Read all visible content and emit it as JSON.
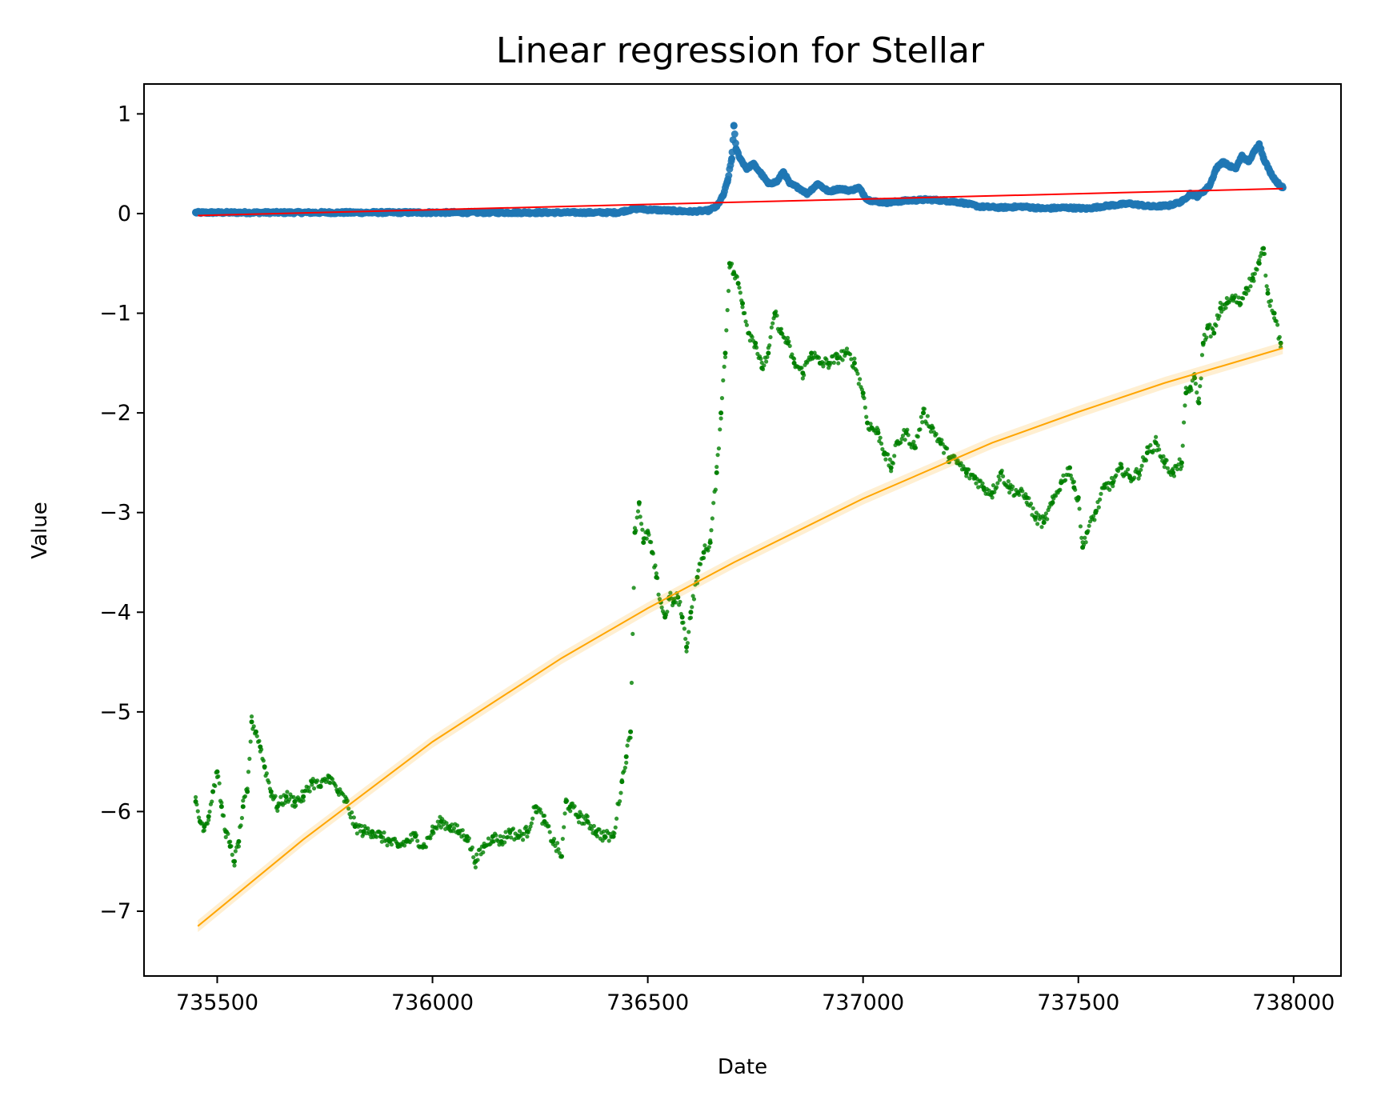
{
  "chart_data": {
    "type": "scatter",
    "title": "Linear regression for Stellar",
    "xlabel": "Date",
    "ylabel": "Value",
    "xlim": [
      735330,
      738110
    ],
    "ylim": [
      -7.65,
      1.3
    ],
    "x_ticks": [
      735500,
      736000,
      736500,
      737000,
      737500,
      738000
    ],
    "x_tick_labels": [
      "735500",
      "736000",
      "736500",
      "737000",
      "737500",
      "738000"
    ],
    "y_ticks": [
      1,
      0,
      -1,
      -2,
      -3,
      -4,
      -5,
      -6,
      -7
    ],
    "y_tick_labels": [
      "1",
      "0",
      "−1",
      "−2",
      "−3",
      "−4",
      "−5",
      "−6",
      "−7"
    ],
    "grid": false,
    "series": [
      {
        "kind": "scatter",
        "color": "#1f77b4",
        "x": [
          735450,
          735550,
          735650,
          735750,
          735850,
          735950,
          736050,
          736150,
          736250,
          736350,
          736430,
          736460,
          736480,
          736500,
          736550,
          736600,
          736640,
          736660,
          736675,
          736685,
          736695,
          736700,
          736705,
          736715,
          736730,
          736745,
          736760,
          736780,
          736800,
          736815,
          736830,
          736850,
          736870,
          736895,
          736920,
          736945,
          736970,
          736990,
          737010,
          737030,
          737060,
          737100,
          737150,
          737190,
          737230,
          737270,
          737320,
          737370,
          737420,
          737470,
          737520,
          737570,
          737620,
          737670,
          737710,
          737740,
          737760,
          737775,
          737790,
          737805,
          737820,
          737835,
          737850,
          737865,
          737880,
          737895,
          737910,
          737920,
          737930,
          737945,
          737960,
          737975
        ],
        "y": [
          0.01,
          0.01,
          0.01,
          0.01,
          0.01,
          0.01,
          0.01,
          0.01,
          0.01,
          0.01,
          0.01,
          0.04,
          0.05,
          0.04,
          0.03,
          0.02,
          0.03,
          0.07,
          0.18,
          0.32,
          0.55,
          0.88,
          0.65,
          0.55,
          0.45,
          0.5,
          0.42,
          0.3,
          0.32,
          0.42,
          0.3,
          0.26,
          0.2,
          0.3,
          0.22,
          0.25,
          0.23,
          0.26,
          0.14,
          0.12,
          0.11,
          0.13,
          0.14,
          0.13,
          0.11,
          0.07,
          0.06,
          0.07,
          0.05,
          0.06,
          0.05,
          0.08,
          0.1,
          0.07,
          0.08,
          0.12,
          0.2,
          0.17,
          0.22,
          0.28,
          0.45,
          0.52,
          0.48,
          0.45,
          0.58,
          0.52,
          0.63,
          0.7,
          0.56,
          0.42,
          0.32,
          0.26
        ]
      },
      {
        "kind": "scatter",
        "color": "#008000",
        "x": [
          735450,
          735460,
          735470,
          735480,
          735490,
          735500,
          735510,
          735520,
          735530,
          735540,
          735550,
          735560,
          735570,
          735580,
          735590,
          735600,
          735610,
          735625,
          735640,
          735660,
          735680,
          735700,
          735720,
          735740,
          735760,
          735780,
          735800,
          735820,
          735840,
          735860,
          735880,
          735900,
          735920,
          735940,
          735960,
          735980,
          736000,
          736020,
          736040,
          736060,
          736080,
          736100,
          736120,
          736140,
          736160,
          736180,
          736200,
          736220,
          736240,
          736260,
          736280,
          736300,
          736310,
          736320,
          736340,
          736360,
          736380,
          736400,
          736420,
          736440,
          736450,
          736460,
          736470,
          736480,
          736490,
          736500,
          736510,
          736520,
          736530,
          736540,
          736550,
          736560,
          736570,
          736580,
          736590,
          736600,
          736615,
          736630,
          736645,
          736660,
          736670,
          736680,
          736690,
          736700,
          736710,
          736720,
          736735,
          736750,
          736765,
          736780,
          736795,
          736810,
          736825,
          736840,
          736860,
          736880,
          736900,
          736920,
          736940,
          736960,
          736980,
          737000,
          737010,
          737020,
          737035,
          737050,
          737065,
          737080,
          737100,
          737120,
          737140,
          737160,
          737180,
          737200,
          737220,
          737240,
          737260,
          737280,
          737300,
          737320,
          737340,
          737360,
          737380,
          737400,
          737420,
          737440,
          737460,
          737480,
          737490,
          737500,
          737510,
          737520,
          737540,
          737560,
          737580,
          737600,
          737620,
          737640,
          737660,
          737680,
          737700,
          737720,
          737740,
          737750,
          737760,
          737770,
          737780,
          737790,
          737800,
          737815,
          737830,
          737845,
          737860,
          737875,
          737890,
          737905,
          737920,
          737930,
          737940,
          737955,
          737970
        ],
        "y": [
          -5.9,
          -6.1,
          -6.15,
          -6.05,
          -5.8,
          -5.6,
          -5.95,
          -6.2,
          -6.35,
          -6.5,
          -6.3,
          -5.95,
          -5.8,
          -5.1,
          -5.2,
          -5.35,
          -5.55,
          -5.8,
          -5.95,
          -5.85,
          -5.9,
          -5.85,
          -5.7,
          -5.75,
          -5.65,
          -5.8,
          -5.9,
          -6.15,
          -6.2,
          -6.2,
          -6.25,
          -6.3,
          -6.35,
          -6.3,
          -6.25,
          -6.35,
          -6.2,
          -6.1,
          -6.15,
          -6.2,
          -6.25,
          -6.5,
          -6.35,
          -6.25,
          -6.3,
          -6.2,
          -6.25,
          -6.2,
          -5.95,
          -6.1,
          -6.3,
          -6.45,
          -5.9,
          -5.95,
          -6.05,
          -6.1,
          -6.2,
          -6.25,
          -6.25,
          -5.7,
          -5.45,
          -5.2,
          -3.2,
          -2.9,
          -3.3,
          -3.2,
          -3.4,
          -3.65,
          -3.9,
          -4.05,
          -3.85,
          -3.9,
          -3.85,
          -4.05,
          -4.35,
          -4.0,
          -3.65,
          -3.4,
          -3.3,
          -2.6,
          -2.0,
          -1.4,
          -0.5,
          -0.6,
          -0.7,
          -0.9,
          -1.2,
          -1.3,
          -1.55,
          -1.4,
          -1.0,
          -1.2,
          -1.3,
          -1.5,
          -1.6,
          -1.4,
          -1.5,
          -1.5,
          -1.45,
          -1.4,
          -1.5,
          -1.8,
          -2.1,
          -2.15,
          -2.2,
          -2.4,
          -2.55,
          -2.3,
          -2.2,
          -2.35,
          -2.0,
          -2.15,
          -2.3,
          -2.45,
          -2.5,
          -2.6,
          -2.65,
          -2.75,
          -2.8,
          -2.6,
          -2.75,
          -2.8,
          -2.85,
          -3.05,
          -3.1,
          -2.9,
          -2.7,
          -2.55,
          -2.75,
          -2.85,
          -3.35,
          -3.2,
          -3.0,
          -2.75,
          -2.7,
          -2.55,
          -2.65,
          -2.6,
          -2.4,
          -2.3,
          -2.5,
          -2.6,
          -2.5,
          -1.8,
          -1.75,
          -1.65,
          -1.9,
          -1.3,
          -1.15,
          -1.2,
          -0.95,
          -0.9,
          -0.85,
          -0.9,
          -0.75,
          -0.65,
          -0.5,
          -0.35,
          -0.8,
          -1.0,
          -1.3
        ]
      },
      {
        "kind": "line",
        "color": "#ff0000",
        "x": [
          735455,
          737975
        ],
        "y": [
          -0.02,
          0.25
        ]
      },
      {
        "kind": "line",
        "color": "#ffa500",
        "band": true,
        "x": [
          735455,
          735700,
          736000,
          736300,
          736500,
          736700,
          737000,
          737300,
          737500,
          737700,
          737975
        ],
        "y": [
          -7.15,
          -6.28,
          -5.3,
          -4.46,
          -3.96,
          -3.5,
          -2.86,
          -2.3,
          -1.99,
          -1.7,
          -1.35
        ]
      }
    ]
  }
}
